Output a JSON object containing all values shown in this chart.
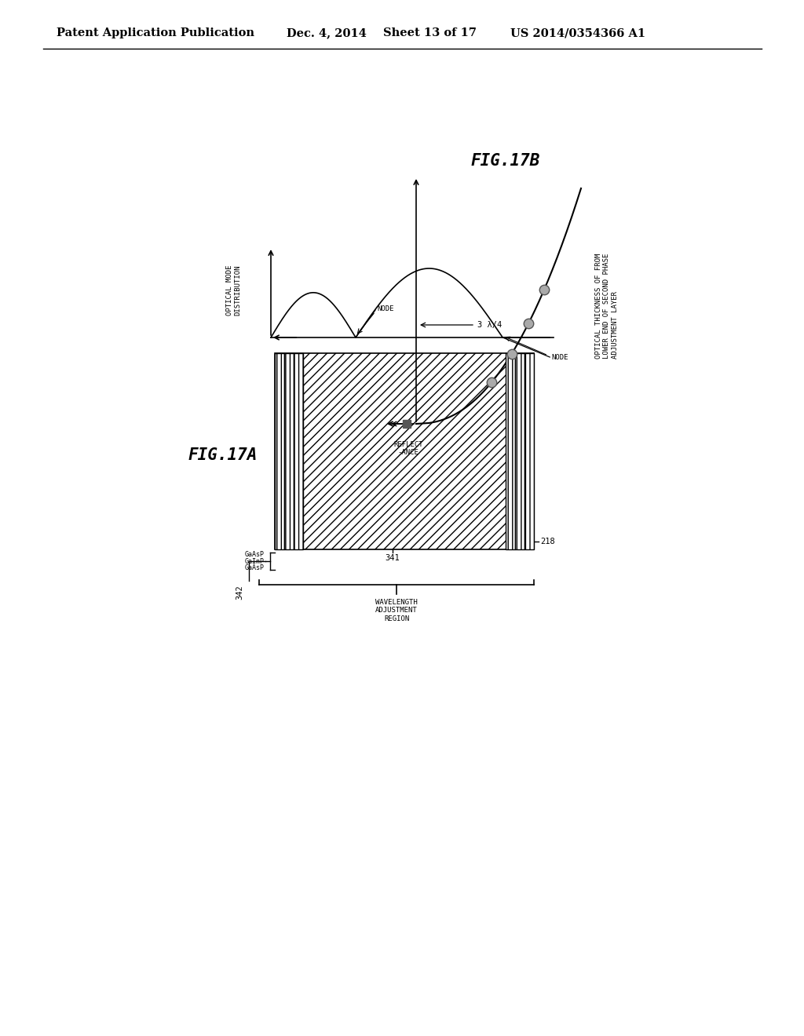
{
  "bg_color": "#ffffff",
  "header_text": "Patent Application Publication",
  "header_date": "Dec. 4, 2014",
  "header_sheet": "Sheet 13 of 17",
  "header_patent": "US 2014/0354366 A1",
  "fig17A_label": "FIG.17A",
  "fig17B_label": "FIG.17B",
  "layer_labels": [
    "GaAsP",
    "GaInP",
    "GaAsP"
  ],
  "layer_label_342": "342",
  "layer_label_341": "341",
  "layer_label_218": "218",
  "wavelength_region_label": "WAVELENGTH\nADJUSTMENT\nREGION",
  "optical_mode_label": "OPTICAL MODE\nDISTRIBUTION",
  "node_label": "NODE",
  "reflectance_label": "REFLECT\n-ANCE",
  "y_axis_label": "OPTICAL THICKNESS OF FROM\nLOWER END OF SECOND PHASE\nADJUSTMENT LAYER",
  "three_lambda_4_label": "3 λ/4"
}
